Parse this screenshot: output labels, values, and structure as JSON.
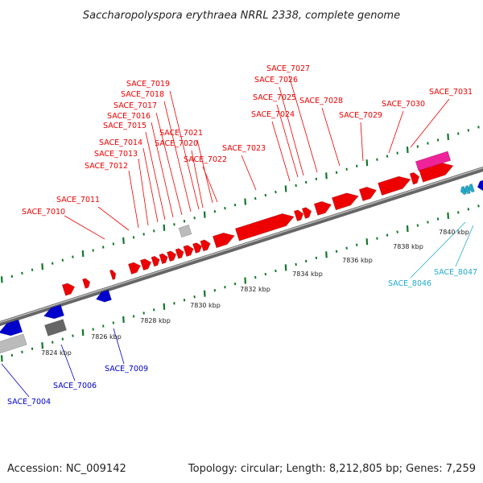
{
  "title": "Saccharopolyspora erythraea NRRL 2338, complete genome",
  "footer": {
    "accession": "Accession: NC_009142",
    "summary": "Topology: circular; Length: 8,212,805 bp; Genes: 7,259"
  },
  "ticks": [
    "7824 kbp",
    "7826 kbp",
    "7828 kbp",
    "7830 kbp",
    "7832 kbp",
    "7834 kbp",
    "7836 kbp",
    "7838 kbp",
    "7840 kbp"
  ],
  "genes_forward": [
    "SACE_7010",
    "SACE_7011",
    "SACE_7012",
    "SACE_7013",
    "SACE_7014",
    "SACE_7015",
    "SACE_7016",
    "SACE_7017",
    "SACE_7018",
    "SACE_7019",
    "SACE_7020",
    "SACE_7021",
    "SACE_7022",
    "SACE_7023",
    "SACE_7024",
    "SACE_7025",
    "SACE_7026",
    "SACE_7027",
    "SACE_7028",
    "SACE_7029",
    "SACE_7030",
    "SACE_7031"
  ],
  "genes_reverse": [
    "SACE_7004",
    "SACE_7006",
    "SACE_7009"
  ],
  "genes_other": [
    "SACE_8046",
    "SACE_8047"
  ],
  "colors": {
    "forward_gene": "#ee0000",
    "reverse_gene": "#0000cc",
    "other_gene": "#22aacc",
    "pseudo": "#888888",
    "rna": "#ee2299",
    "backbone": "#888888",
    "ruler": "#11772a"
  }
}
